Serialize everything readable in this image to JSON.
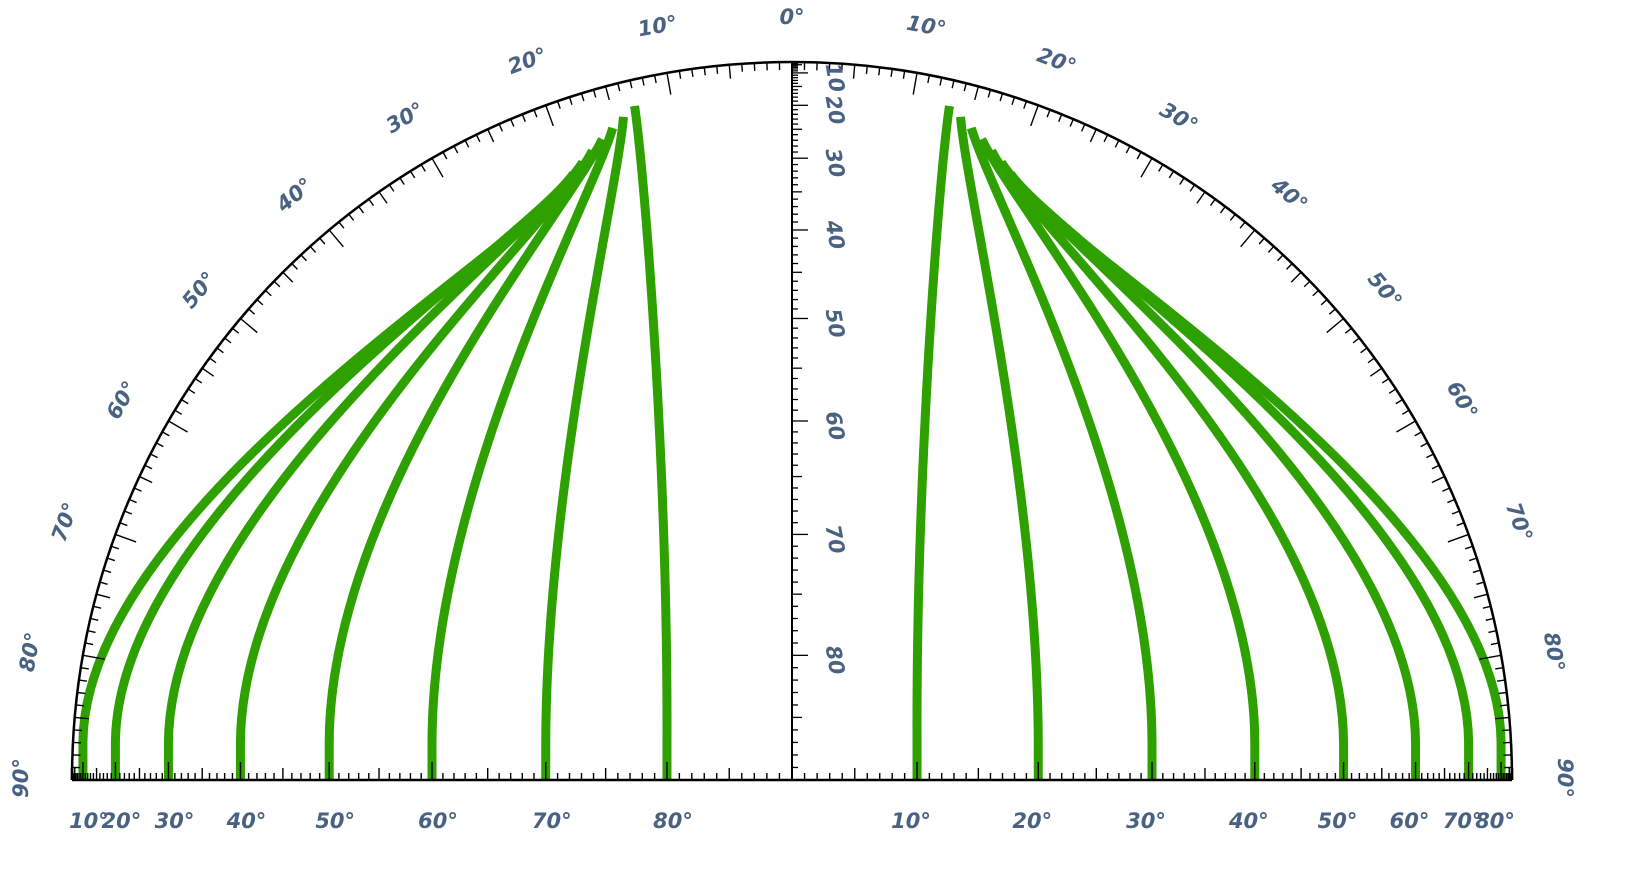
{
  "colors": {
    "curve": "#2ea000",
    "label": "#4a6282",
    "line": "#000000",
    "background": "#ffffff"
  },
  "rim_scale": {
    "labels": [
      "10°",
      "20°",
      "30°",
      "40°",
      "50°",
      "60°",
      "70°",
      "80°"
    ],
    "top_label": "0°",
    "end_label": "90°",
    "values": [
      10,
      20,
      30,
      40,
      50,
      60,
      70,
      80
    ]
  },
  "base_scale": {
    "left_labels": [
      "10°",
      "20°",
      "30°",
      "40°",
      "50°",
      "60°",
      "70°",
      "80°"
    ],
    "right_labels": [
      "80°",
      "70°",
      "60°",
      "50°",
      "40°",
      "30°",
      "20°",
      "10°"
    ]
  },
  "center_scale": {
    "labels": [
      "10",
      "20",
      "30",
      "40",
      "50",
      "60",
      "70",
      "80"
    ]
  },
  "curves": {
    "left_values": [
      10,
      20,
      30,
      40,
      50,
      60,
      70,
      80
    ],
    "right_values": [
      80,
      70,
      60,
      50,
      40,
      30,
      20,
      10
    ]
  }
}
